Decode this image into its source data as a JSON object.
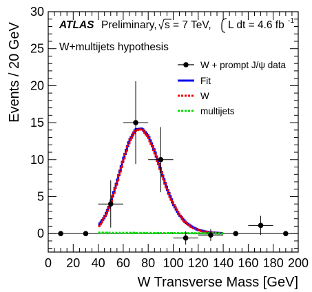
{
  "chart_data": {
    "type": "scatter",
    "title": "",
    "xlabel": "W Transverse Mass [GeV]",
    "ylabel": "Events / 20 GeV",
    "xlim": [
      0,
      200
    ],
    "ylim": [
      -2.5,
      30
    ],
    "x_ticks": [
      0,
      20,
      40,
      60,
      80,
      100,
      120,
      140,
      160,
      180,
      200
    ],
    "y_ticks": [
      0,
      5,
      10,
      15,
      20,
      25,
      30
    ],
    "grid": false,
    "legend_position": "top-right",
    "annotations": {
      "experiment": "ATLAS",
      "status": "Preliminary,",
      "sqrt_s": "s = 7 TeV,",
      "lumi_pre": "L dt = 4.6 fb",
      "lumi_exp": "-1",
      "hypothesis": "W+multijets hypothesis"
    },
    "series": [
      {
        "name": "W + prompt J/ψ data",
        "kind": "points",
        "color": "#000000",
        "x": [
          10,
          30,
          50,
          70,
          90,
          110,
          130,
          150,
          170,
          190
        ],
        "y": [
          0,
          0,
          4,
          15,
          10,
          -0.6,
          -0.2,
          0,
          1.1,
          0
        ],
        "yerr": [
          0,
          0,
          3.2,
          5.6,
          4.4,
          0.9,
          0.8,
          0,
          1.3,
          0
        ],
        "xerr": [
          0,
          0,
          10,
          10,
          10,
          10,
          10,
          0,
          10,
          0
        ]
      },
      {
        "name": "Fit",
        "kind": "curve",
        "color": "#0000ee",
        "x": [
          40,
          45,
          50,
          55,
          60,
          65,
          70,
          75,
          80,
          85,
          90,
          95,
          100,
          105,
          110,
          115,
          120,
          125,
          130,
          135,
          140
        ],
        "y": [
          1.0,
          2.2,
          4.2,
          7.0,
          10.0,
          12.6,
          14.1,
          14.2,
          13.2,
          11.2,
          8.6,
          6.1,
          4.0,
          2.5,
          1.5,
          0.9,
          0.5,
          0.3,
          0.15,
          0.1,
          0.05
        ]
      },
      {
        "name": "W",
        "kind": "curve",
        "color": "#ee0000",
        "x": [
          40,
          45,
          50,
          55,
          60,
          65,
          70,
          75,
          80,
          85,
          90,
          95,
          100,
          105,
          110,
          115,
          120,
          125,
          130,
          135,
          140
        ],
        "y": [
          0.9,
          2.1,
          4.1,
          6.9,
          9.9,
          12.5,
          14.0,
          14.1,
          13.1,
          11.1,
          8.5,
          6.0,
          3.95,
          2.45,
          1.45,
          0.85,
          0.45,
          0.25,
          0.12,
          0.07,
          0.03
        ]
      },
      {
        "name": "multijets",
        "kind": "curve",
        "color": "#00dd00",
        "x": [
          40,
          50,
          60,
          70,
          80,
          90,
          100,
          110,
          120,
          130,
          140
        ],
        "y": [
          0.12,
          0.1,
          0.1,
          0.09,
          0.08,
          0.07,
          0.06,
          0.05,
          0.04,
          0.03,
          0.02
        ]
      }
    ]
  }
}
